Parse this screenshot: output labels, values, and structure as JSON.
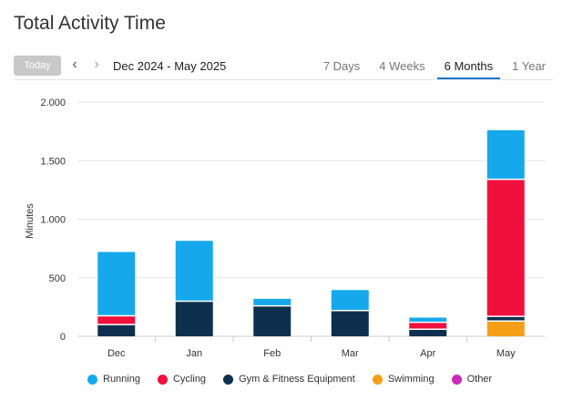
{
  "header": {
    "title": "Total Activity Time"
  },
  "toolbar": {
    "today_label": "Today",
    "prev_icon": "chevron-left-icon",
    "next_icon": "chevron-right-icon",
    "range_label": "Dec 2024 - May 2025",
    "tabs": [
      {
        "label": "7 Days",
        "active": false
      },
      {
        "label": "4 Weeks",
        "active": false
      },
      {
        "label": "6 Months",
        "active": true
      },
      {
        "label": "1 Year",
        "active": false
      }
    ],
    "accent_color": "#1a77c9"
  },
  "chart_data": {
    "type": "bar",
    "stacked": true,
    "categories": [
      "Dec",
      "Jan",
      "Feb",
      "Mar",
      "Apr",
      "May"
    ],
    "ylabel": "Minutes",
    "ylim": [
      0,
      2000
    ],
    "yticks": [
      0,
      500,
      1000,
      1500,
      2000
    ],
    "ytick_labels": [
      "0",
      "500",
      "1.000",
      "1.500",
      "2.000"
    ],
    "grid": true,
    "legend_position": "bottom",
    "series": [
      {
        "name": "Swimming",
        "color": "#f5a016",
        "values": [
          0,
          0,
          0,
          0,
          0,
          130
        ]
      },
      {
        "name": "Gym & Fitness Equipment",
        "color": "#0d304e",
        "values": [
          100,
          300,
          260,
          220,
          60,
          40
        ]
      },
      {
        "name": "Other",
        "color": "#cc2aba",
        "values": [
          0,
          0,
          0,
          0,
          0,
          0
        ]
      },
      {
        "name": "Cycling",
        "color": "#f0103e",
        "values": [
          75,
          0,
          0,
          0,
          60,
          1170
        ]
      },
      {
        "name": "Running",
        "color": "#17a8ec",
        "values": [
          545,
          515,
          60,
          175,
          40,
          420
        ]
      }
    ]
  },
  "legend": [
    {
      "label": "Running",
      "color": "#17a8ec"
    },
    {
      "label": "Cycling",
      "color": "#f0103e"
    },
    {
      "label": "Gym & Fitness Equipment",
      "color": "#0d304e"
    },
    {
      "label": "Swimming",
      "color": "#f5a016"
    },
    {
      "label": "Other",
      "color": "#cc2aba"
    }
  ]
}
